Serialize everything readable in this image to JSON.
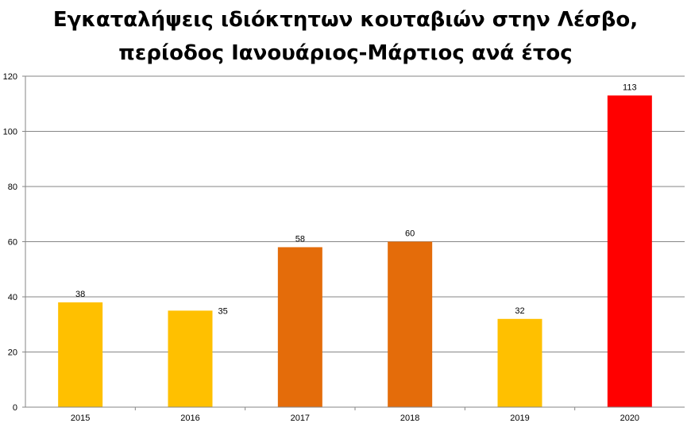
{
  "chart_data": {
    "type": "bar",
    "title_line1": "Εγκαταλήψεις ιδιόκτητων κουταβιών στην Λέσβο,",
    "title_line2": "περίοδος Ιανουάριος-Μάρτιος ανά έτος",
    "xlabel": "",
    "ylabel": "",
    "categories": [
      "2015",
      "2016",
      "2017",
      "2018",
      "2019",
      "2020"
    ],
    "values": [
      38,
      35,
      58,
      60,
      32,
      113
    ],
    "bar_colors": [
      "#FFC000",
      "#FFC000",
      "#E46C0A",
      "#E46C0A",
      "#FFC000",
      "#FF0000"
    ],
    "data_labels": [
      "38",
      "35",
      "58",
      "60",
      "32",
      "113"
    ],
    "ylim": [
      0,
      120
    ],
    "yticks": [
      0,
      20,
      40,
      60,
      80,
      100,
      120
    ],
    "grid": true,
    "legend": "none"
  }
}
